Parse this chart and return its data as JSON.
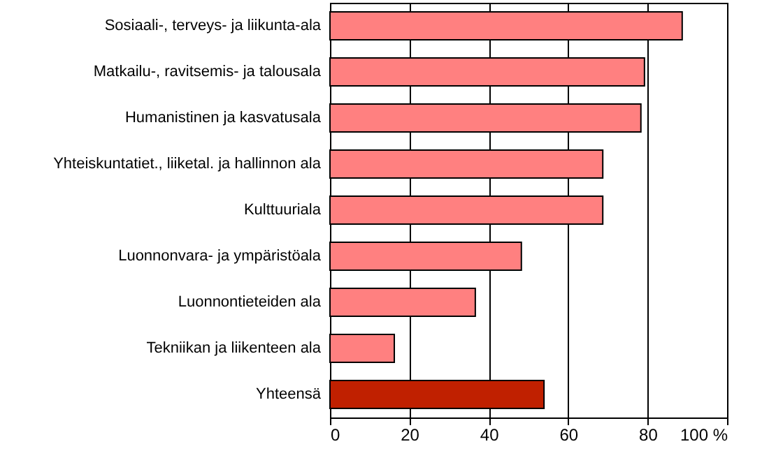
{
  "chart_data": {
    "type": "bar",
    "orientation": "horizontal",
    "categories": [
      "Sosiaali-, terveys- ja liikunta-ala",
      "Matkailu-, ravitsemis- ja talousala",
      "Humanistinen ja kasvatusala",
      "Yhteiskuntatiet., liiketal. ja hallinnon ala",
      "Kulttuuriala",
      "Luonnonvara- ja ympäristöala",
      "Luonnontieteiden ala",
      "Tekniikan ja liikenteen ala",
      "Yhteensä"
    ],
    "values": [
      88.7,
      79.2,
      78.3,
      68.7,
      68.7,
      48.2,
      36.6,
      16.2,
      53.9
    ],
    "colors": [
      "#ff8080",
      "#ff8080",
      "#ff8080",
      "#ff8080",
      "#ff8080",
      "#ff8080",
      "#ff8080",
      "#ff8080",
      "#c02000"
    ],
    "xlim": [
      0,
      100
    ],
    "xticks": [
      0,
      20,
      40,
      60,
      80,
      {
        "value": 100,
        "label": "100 %"
      }
    ],
    "grid": "x"
  }
}
